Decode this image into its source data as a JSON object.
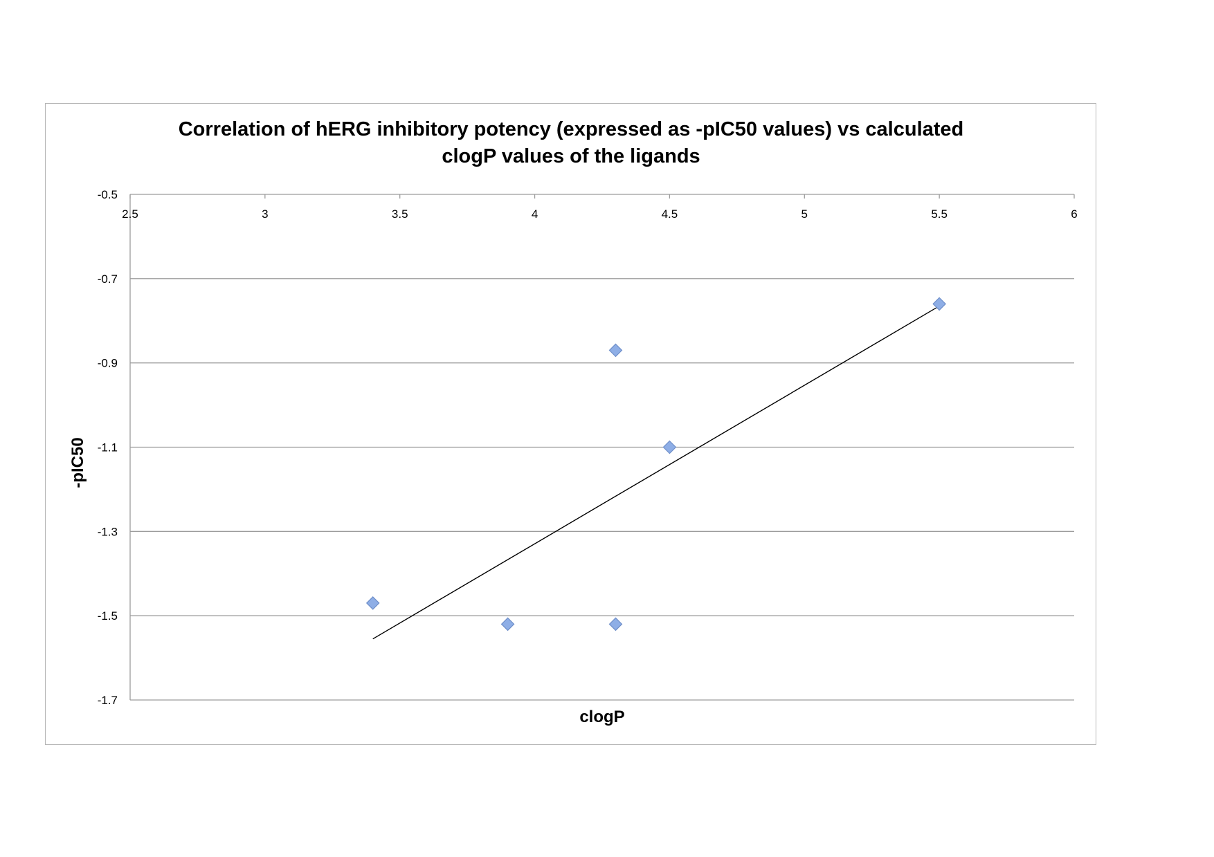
{
  "chart_data": {
    "type": "scatter",
    "title_lines": [
      "Correlation of hERG inhibitory potency (expressed as -pIC50 values) vs calculated",
      "clogP values of the ligands"
    ],
    "xlabel": "clogP",
    "ylabel": "-pIC50",
    "xlim": [
      2.5,
      6
    ],
    "ylim": [
      -1.7,
      -0.5
    ],
    "x_ticks": [
      2.5,
      3,
      3.5,
      4,
      4.5,
      5,
      5.5,
      6
    ],
    "x_tick_labels": [
      "2.5",
      "3",
      "3.5",
      "4",
      "4.5",
      "5",
      "5.5",
      "6"
    ],
    "y_ticks": [
      -0.5,
      -0.7,
      -0.9,
      -1.1,
      -1.3,
      -1.5,
      -1.7
    ],
    "y_tick_labels": [
      "-0.5",
      "-0.7",
      "-0.9",
      "-1.1",
      "-1.3",
      "-1.5",
      "-1.7"
    ],
    "x_axis_position": "top",
    "grid": true,
    "legend": "none",
    "series": [
      {
        "marker": "diamond",
        "color": "#8eaee6",
        "points": [
          {
            "x": 3.4,
            "y": -1.47
          },
          {
            "x": 3.9,
            "y": -1.52
          },
          {
            "x": 4.3,
            "y": -1.52
          },
          {
            "x": 4.3,
            "y": -0.87
          },
          {
            "x": 4.5,
            "y": -1.1
          },
          {
            "x": 5.5,
            "y": -0.76
          }
        ]
      }
    ],
    "trendline": {
      "type": "linear",
      "color": "#000000",
      "x_range": [
        3.4,
        5.5
      ],
      "y_at_range": [
        -1.555,
        -0.765
      ]
    }
  }
}
